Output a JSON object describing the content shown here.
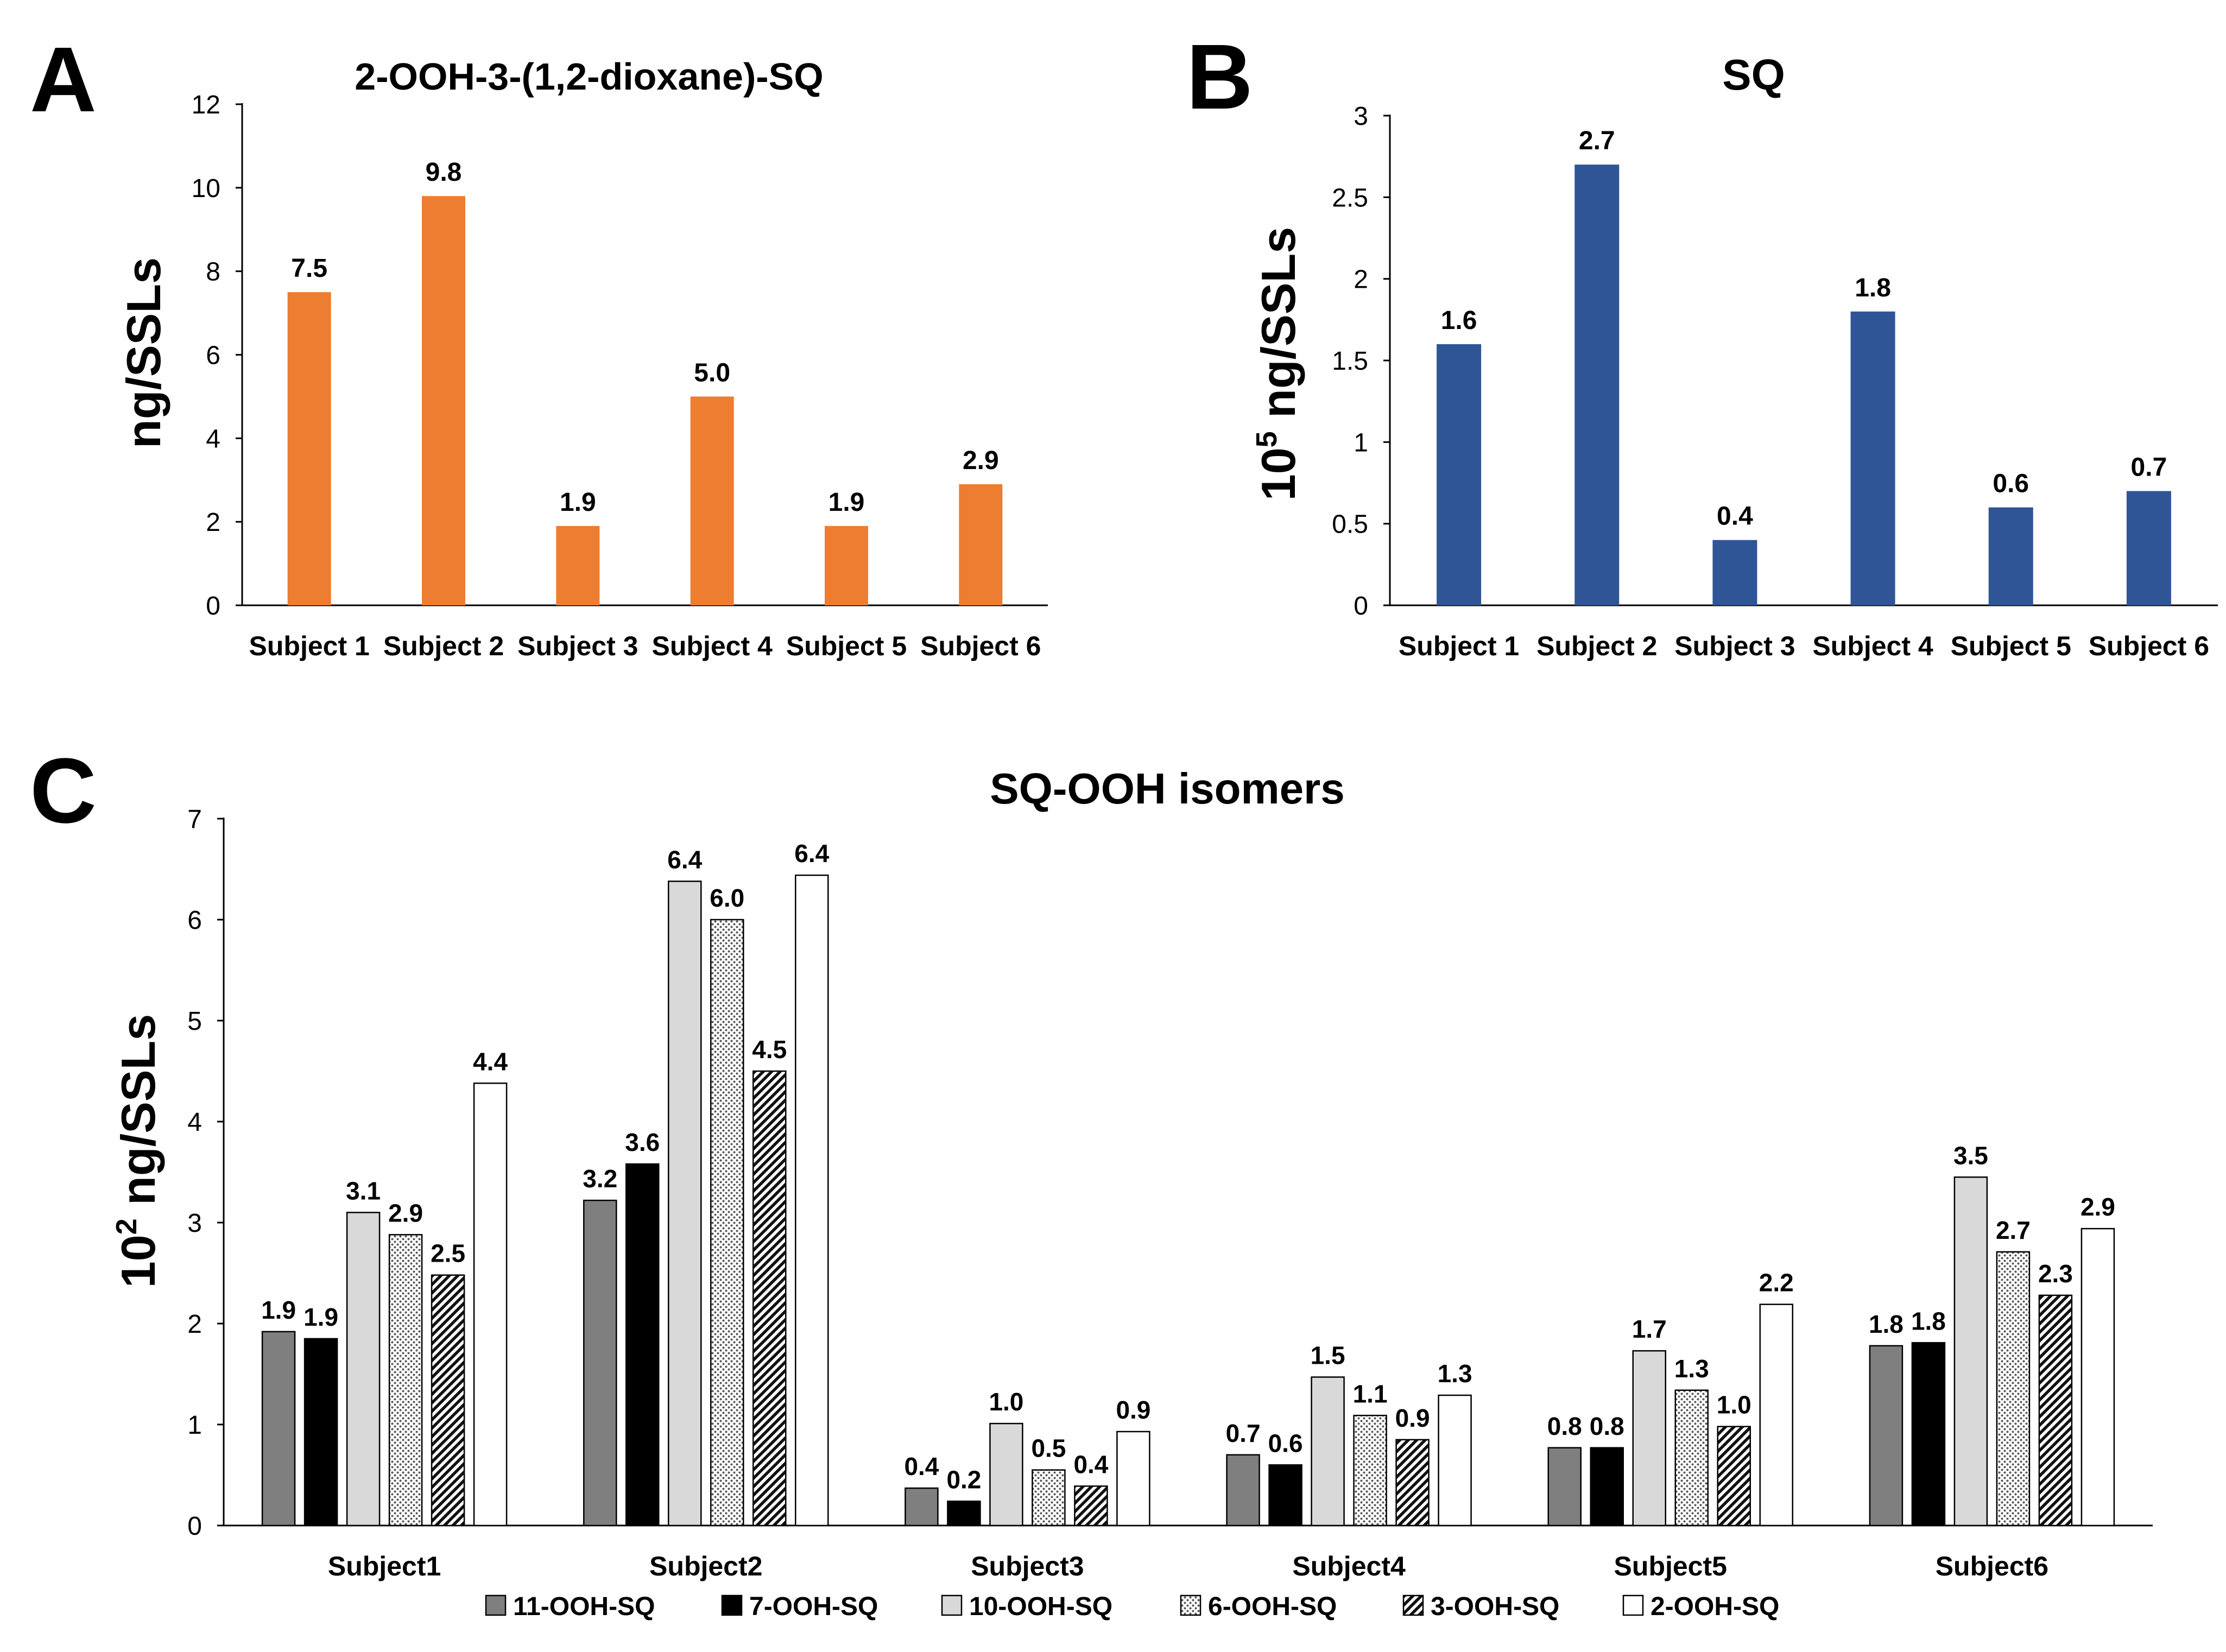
{
  "chart_data": [
    {
      "panel": "A",
      "type": "bar",
      "title": "2-OOH-3-(1,2-dioxane)-SQ",
      "ylabel": "ng/SSLs",
      "ylabel_sup": "",
      "categories": [
        "Subject 1",
        "Subject 2",
        "Subject 3",
        "Subject 4",
        "Subject 5",
        "Subject 6"
      ],
      "values": [
        7.5,
        9.8,
        1.9,
        5.0,
        1.9,
        2.9
      ],
      "value_labels": [
        "7.5",
        "9.8",
        "1.9",
        "5.0",
        "1.9",
        "2.9"
      ],
      "ylim": [
        0,
        12
      ],
      "yticks": [
        0,
        2,
        4,
        6,
        8,
        10,
        12
      ],
      "ytick_labels": [
        "0",
        "2",
        "4",
        "6",
        "8",
        "10",
        "12"
      ],
      "color": "#ED7D31",
      "grid": false
    },
    {
      "panel": "B",
      "type": "bar",
      "title": "SQ",
      "ylabel": "ng/SSLs",
      "ylabel_prefix": "10",
      "ylabel_sup": "5",
      "categories": [
        "Subject 1",
        "Subject 2",
        "Subject 3",
        "Subject 4",
        "Subject 5",
        "Subject 6"
      ],
      "values": [
        1.6,
        2.7,
        0.4,
        1.8,
        0.6,
        0.7
      ],
      "value_labels": [
        "1.6",
        "2.7",
        "0.4",
        "1.8",
        "0.6",
        "0.7"
      ],
      "ylim": [
        0,
        3
      ],
      "yticks": [
        0,
        0.5,
        1,
        1.5,
        2,
        2.5,
        3
      ],
      "ytick_labels": [
        "0",
        "0.5",
        "1",
        "1.5",
        "2",
        "2.5",
        "3"
      ],
      "color": "#2F5597",
      "grid": false
    },
    {
      "panel": "C",
      "type": "bar",
      "title": "SQ-OOH isomers",
      "ylabel": "ng/SSLs",
      "ylabel_prefix": "10",
      "ylabel_sup": "2",
      "categories": [
        "Subject1",
        "Subject2",
        "Subject3",
        "Subject4",
        "Subject5",
        "Subject6"
      ],
      "ylim": [
        0,
        7
      ],
      "yticks": [
        0,
        1,
        2,
        3,
        4,
        5,
        6,
        7
      ],
      "ytick_labels": [
        "0",
        "1",
        "2",
        "3",
        "4",
        "5",
        "6",
        "7"
      ],
      "legend_position": "bottom",
      "grid": false,
      "series": [
        {
          "name": "11-OOH-SQ",
          "pattern": "solid-gray",
          "values": [
            1.92,
            3.22,
            0.37,
            0.7,
            0.77,
            1.78
          ],
          "labels": [
            "1.9",
            "3.2",
            "0.4",
            "0.7",
            "0.8",
            "1.8"
          ]
        },
        {
          "name": "7-OOH-SQ",
          "pattern": "solid-black",
          "values": [
            1.85,
            3.58,
            0.24,
            0.6,
            0.77,
            1.81
          ],
          "labels": [
            "1.9",
            "3.6",
            "0.2",
            "0.6",
            "0.8",
            "1.8"
          ]
        },
        {
          "name": "10-OOH-SQ",
          "pattern": "light-gray",
          "values": [
            3.1,
            6.38,
            1.01,
            1.47,
            1.73,
            3.45
          ],
          "labels": [
            "3.1",
            "6.4",
            "1.0",
            "1.5",
            "1.7",
            "3.5"
          ]
        },
        {
          "name": "6-OOH-SQ",
          "pattern": "dots",
          "values": [
            2.88,
            6.0,
            0.55,
            1.09,
            1.34,
            2.71
          ],
          "labels": [
            "2.9",
            "6.0",
            "0.5",
            "1.1",
            "1.3",
            "2.7"
          ]
        },
        {
          "name": "3-OOH-SQ",
          "pattern": "diagonal",
          "values": [
            2.48,
            4.5,
            0.39,
            0.85,
            0.98,
            2.28
          ],
          "labels": [
            "2.5",
            "4.5",
            "0.4",
            "0.9",
            "1.0",
            "2.3"
          ]
        },
        {
          "name": "2-OOH-SQ",
          "pattern": "white",
          "values": [
            4.38,
            6.44,
            0.93,
            1.29,
            2.19,
            2.94
          ],
          "labels": [
            "4.4",
            "6.4",
            "0.9",
            "1.3",
            "2.2",
            "2.9"
          ]
        }
      ]
    }
  ]
}
